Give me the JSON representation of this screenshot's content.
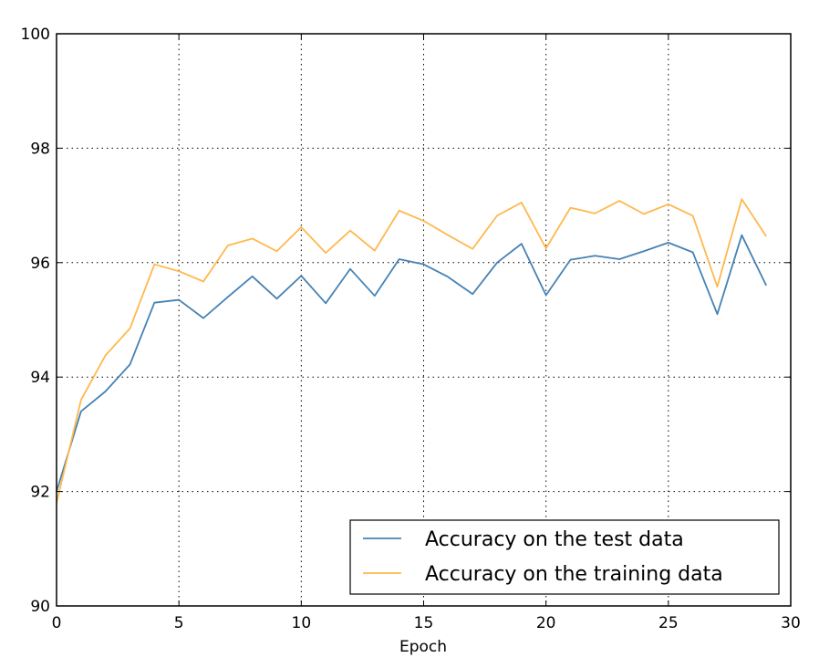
{
  "chart_data": {
    "type": "line",
    "title": "",
    "xlabel": "Epoch",
    "ylabel": "",
    "xlim": [
      0,
      30
    ],
    "ylim": [
      90,
      100
    ],
    "xticks": [
      "0",
      "5",
      "10",
      "15",
      "20",
      "25",
      "30"
    ],
    "yticks": [
      "90",
      "92",
      "94",
      "96",
      "98",
      "100"
    ],
    "grid": true,
    "legend_position": "bottom-right",
    "x": [
      0,
      1,
      2,
      3,
      4,
      5,
      6,
      7,
      8,
      9,
      10,
      11,
      12,
      13,
      14,
      15,
      16,
      17,
      18,
      19,
      20,
      21,
      22,
      23,
      24,
      25,
      26,
      27,
      28,
      29
    ],
    "series": [
      {
        "name": "Accuracy on the test data",
        "color": "#4682b4",
        "values": [
          92.0,
          93.4,
          93.75,
          94.22,
          95.3,
          95.35,
          95.03,
          95.4,
          95.76,
          95.37,
          95.77,
          95.29,
          95.89,
          95.42,
          96.06,
          95.97,
          95.75,
          95.45,
          96.0,
          96.33,
          95.43,
          96.05,
          96.12,
          96.06,
          96.2,
          96.35,
          96.18,
          95.1,
          96.48,
          95.6
        ]
      },
      {
        "name": "Accuracy on the training data",
        "color": "#ffb84d",
        "values": [
          91.8,
          93.6,
          94.38,
          94.85,
          95.97,
          95.85,
          95.67,
          96.3,
          96.42,
          96.2,
          96.62,
          96.17,
          96.56,
          96.21,
          96.91,
          96.73,
          96.48,
          96.24,
          96.82,
          97.05,
          96.25,
          96.96,
          96.86,
          97.08,
          96.85,
          97.02,
          96.82,
          95.58,
          97.11,
          96.46
        ]
      }
    ]
  }
}
